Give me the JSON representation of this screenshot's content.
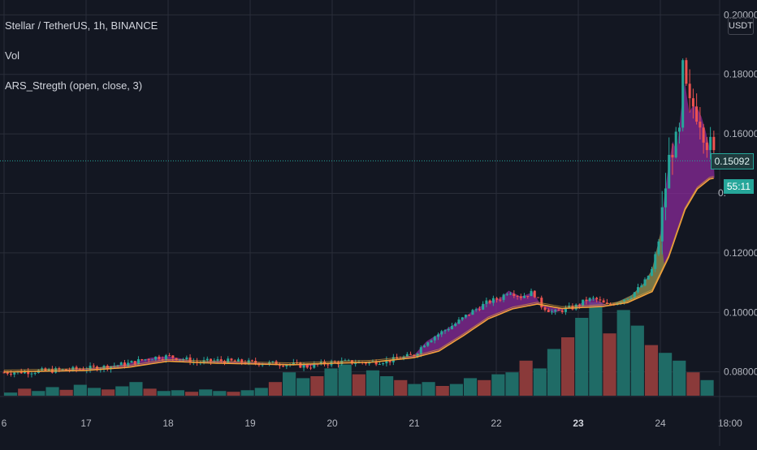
{
  "header": {
    "symbol_line": "Stellar / TetherUS, 1h, BINANCE",
    "indicator_vol": "Vol",
    "indicator_ars": "ARS_Stregth (open, close, 3)"
  },
  "price_axis": {
    "currency": "USDT",
    "ticks": [
      "0.20000",
      "0.18000",
      "0.16000",
      "0.12000",
      "0.10000",
      "0.08000"
    ],
    "partial_tick": "0.",
    "last_price": "0.15092",
    "countdown": "55:11"
  },
  "time_axis": {
    "ticks": [
      "6",
      "17",
      "18",
      "19",
      "20",
      "21",
      "22",
      "23",
      "24",
      "18:00"
    ]
  },
  "colors": {
    "background": "#131722",
    "grid": "#2a2e39",
    "up": "#26a69a",
    "down": "#ef5350",
    "vol_up": "#1f6b66",
    "vol_down": "#8a3a3a",
    "ma_fast": "#d59b3a",
    "ma_slow": "#f2a13b",
    "fill_bull": "#8a2a9a",
    "fill_bear": "#7a8a3a"
  },
  "chart_data": {
    "type": "candlestick",
    "title": "Stellar / TetherUS, 1h, BINANCE",
    "x_unit": "day",
    "y_unit": "USDT",
    "ylim": [
      0.072,
      0.205
    ],
    "x_ticks": [
      "6",
      "17",
      "18",
      "19",
      "20",
      "21",
      "22",
      "23",
      "24",
      "18:00"
    ],
    "y_ticks": [
      0.08,
      0.1,
      0.12,
      0.16,
      0.18,
      0.2
    ],
    "close_series": [
      [
        16.0,
        0.0798
      ],
      [
        16.3,
        0.0801
      ],
      [
        16.6,
        0.0805
      ],
      [
        16.9,
        0.0809
      ],
      [
        17.2,
        0.0816
      ],
      [
        17.5,
        0.0827
      ],
      [
        17.8,
        0.0848
      ],
      [
        18.0,
        0.0852
      ],
      [
        18.2,
        0.0843
      ],
      [
        18.35,
        0.0832
      ],
      [
        18.6,
        0.0838
      ],
      [
        18.9,
        0.0833
      ],
      [
        19.2,
        0.0829
      ],
      [
        19.5,
        0.0826
      ],
      [
        19.7,
        0.0818
      ],
      [
        19.9,
        0.0828
      ],
      [
        20.1,
        0.0833
      ],
      [
        20.4,
        0.0831
      ],
      [
        20.7,
        0.0838
      ],
      [
        21.0,
        0.0857
      ],
      [
        21.15,
        0.0903
      ],
      [
        21.3,
        0.0928
      ],
      [
        21.5,
        0.0962
      ],
      [
        21.7,
        0.1002
      ],
      [
        21.9,
        0.1035
      ],
      [
        22.05,
        0.1048
      ],
      [
        22.15,
        0.1073
      ],
      [
        22.3,
        0.1053
      ],
      [
        22.45,
        0.1068
      ],
      [
        22.55,
        0.1022
      ],
      [
        22.7,
        0.0998
      ],
      [
        22.85,
        0.1012
      ],
      [
        22.95,
        0.1017
      ],
      [
        23.1,
        0.1042
      ],
      [
        23.2,
        0.1046
      ],
      [
        23.35,
        0.1023
      ],
      [
        23.5,
        0.1038
      ],
      [
        23.65,
        0.1058
      ],
      [
        23.8,
        0.1098
      ],
      [
        23.9,
        0.1145
      ],
      [
        24.0,
        0.1265
      ],
      [
        24.07,
        0.1445
      ],
      [
        24.15,
        0.1575
      ],
      [
        24.22,
        0.1525
      ],
      [
        24.28,
        0.1825
      ],
      [
        24.34,
        0.1668
      ],
      [
        24.42,
        0.1705
      ],
      [
        24.5,
        0.1658
      ],
      [
        24.58,
        0.1582
      ],
      [
        24.62,
        0.1525
      ],
      [
        24.66,
        0.1509
      ]
    ],
    "ma_series": [
      [
        16.0,
        0.08
      ],
      [
        17.0,
        0.0805
      ],
      [
        17.5,
        0.0815
      ],
      [
        18.0,
        0.0836
      ],
      [
        18.5,
        0.083
      ],
      [
        19.0,
        0.0827
      ],
      [
        19.5,
        0.0824
      ],
      [
        20.0,
        0.0829
      ],
      [
        20.5,
        0.0833
      ],
      [
        21.0,
        0.0848
      ],
      [
        21.3,
        0.087
      ],
      [
        21.6,
        0.0922
      ],
      [
        21.9,
        0.0978
      ],
      [
        22.2,
        0.1012
      ],
      [
        22.5,
        0.1028
      ],
      [
        22.8,
        0.1013
      ],
      [
        23.0,
        0.1016
      ],
      [
        23.3,
        0.102
      ],
      [
        23.6,
        0.1033
      ],
      [
        23.9,
        0.107
      ],
      [
        24.1,
        0.1185
      ],
      [
        24.3,
        0.1345
      ],
      [
        24.45,
        0.1415
      ],
      [
        24.6,
        0.1448
      ],
      [
        24.66,
        0.1452
      ]
    ],
    "volume_relative": [
      0.08,
      0.18,
      0.12,
      0.22,
      0.15,
      0.28,
      0.2,
      0.16,
      0.24,
      0.35,
      0.18,
      0.12,
      0.14,
      0.1,
      0.16,
      0.12,
      0.1,
      0.14,
      0.2,
      0.35,
      0.6,
      0.45,
      0.5,
      0.7,
      0.8,
      0.55,
      0.65,
      0.5,
      0.4,
      0.3,
      0.35,
      0.25,
      0.3,
      0.45,
      0.4,
      0.55,
      0.6,
      0.9,
      0.7,
      1.2,
      1.5,
      2.0,
      2.4,
      1.6,
      2.2,
      1.8,
      1.3,
      1.1,
      0.9,
      0.6,
      0.4
    ]
  }
}
